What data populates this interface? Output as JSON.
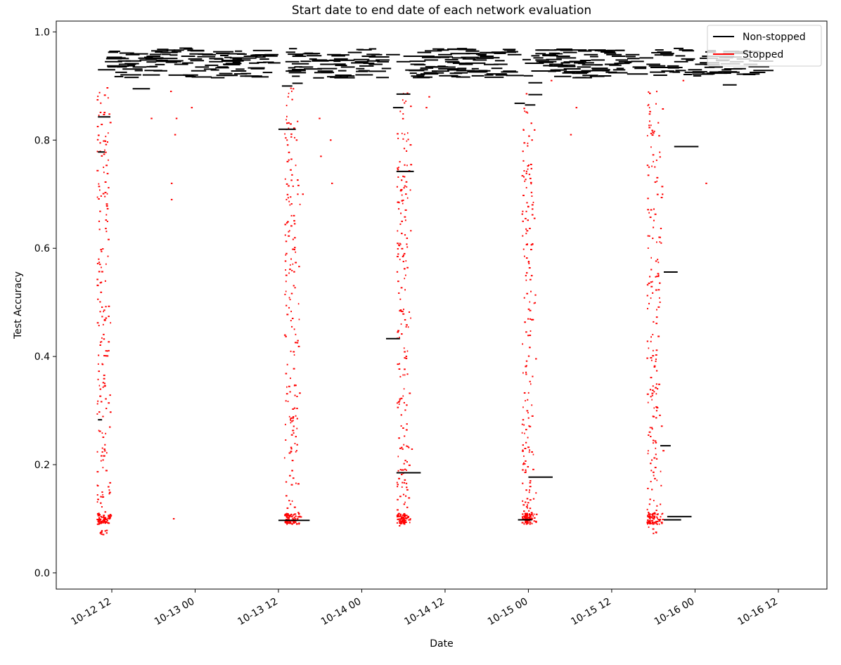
{
  "chart_data": {
    "type": "line",
    "title": "Start date to end date of each network evaluation",
    "xlabel": "Date",
    "ylabel": "Test Accuracy",
    "x_unit": "hours since 2000-10-12 00:00 (tick labels shown as MM-DD HH)",
    "xlim": [
      4.0,
      115.0
    ],
    "ylim": [
      -0.03,
      1.02
    ],
    "x_ticks": [
      {
        "value": 12,
        "label": "10-12 12"
      },
      {
        "value": 24,
        "label": "10-13 00"
      },
      {
        "value": 36,
        "label": "10-13 12"
      },
      {
        "value": 48,
        "label": "10-14 00"
      },
      {
        "value": 60,
        "label": "10-14 12"
      },
      {
        "value": 72,
        "label": "10-15 00"
      },
      {
        "value": 84,
        "label": "10-15 12"
      },
      {
        "value": 96,
        "label": "10-16 00"
      },
      {
        "value": 108,
        "label": "10-16 12"
      }
    ],
    "y_ticks": [
      {
        "value": 0.0,
        "label": "0.0"
      },
      {
        "value": 0.2,
        "label": "0.2"
      },
      {
        "value": 0.4,
        "label": "0.4"
      },
      {
        "value": 0.6,
        "label": "0.6"
      },
      {
        "value": 0.8,
        "label": "0.8"
      },
      {
        "value": 1.0,
        "label": "1.0"
      }
    ],
    "legend": {
      "position": "top-right",
      "entries": [
        {
          "label": "Non-stopped",
          "color": "#000000"
        },
        {
          "label": "Stopped",
          "color": "#ff0000"
        }
      ]
    },
    "grid": false,
    "series": [
      {
        "name": "Non-stopped",
        "color": "#000000",
        "segments": [
          [
            10.0,
            11.8,
            0.843
          ],
          [
            10.0,
            11.0,
            0.778
          ],
          [
            10.0,
            10.6,
            0.283
          ],
          [
            10.0,
            12.5,
            0.93
          ],
          [
            11.0,
            13.5,
            0.945
          ],
          [
            12.0,
            14.0,
            0.952
          ],
          [
            13.0,
            15.5,
            0.94
          ],
          [
            14.0,
            16.0,
            0.958
          ],
          [
            15.0,
            17.0,
            0.935
          ],
          [
            15.0,
            17.5,
            0.895
          ],
          [
            16.0,
            18.5,
            0.948
          ],
          [
            17.0,
            19.0,
            0.955
          ],
          [
            18.0,
            20.0,
            0.928
          ],
          [
            19.0,
            21.5,
            0.962
          ],
          [
            20.0,
            22.0,
            0.945
          ],
          [
            21.0,
            23.0,
            0.94
          ],
          [
            22.0,
            24.0,
            0.955
          ],
          [
            23.0,
            25.0,
            0.95
          ],
          [
            24.0,
            26.0,
            0.935
          ],
          [
            25.0,
            27.0,
            0.958
          ],
          [
            26.0,
            28.0,
            0.945
          ],
          [
            27.0,
            29.0,
            0.96
          ],
          [
            28.0,
            30.0,
            0.94
          ],
          [
            29.0,
            31.0,
            0.952
          ],
          [
            30.0,
            32.0,
            0.948
          ],
          [
            31.0,
            33.0,
            0.955
          ],
          [
            32.0,
            34.0,
            0.932
          ],
          [
            34.0,
            36.0,
            0.958
          ],
          [
            36.0,
            38.5,
            0.82
          ],
          [
            36.5,
            38.0,
            0.9
          ],
          [
            38.0,
            39.5,
            0.905
          ],
          [
            36.0,
            40.5,
            0.097
          ],
          [
            37.0,
            39.0,
            0.945
          ],
          [
            38.0,
            40.0,
            0.955
          ],
          [
            39.0,
            41.0,
            0.935
          ],
          [
            40.0,
            42.0,
            0.96
          ],
          [
            41.0,
            43.0,
            0.948
          ],
          [
            42.0,
            44.0,
            0.94
          ],
          [
            43.0,
            45.0,
            0.958
          ],
          [
            44.0,
            46.0,
            0.95
          ],
          [
            45.0,
            47.0,
            0.935
          ],
          [
            46.0,
            48.0,
            0.962
          ],
          [
            47.0,
            49.0,
            0.945
          ],
          [
            48.0,
            50.0,
            0.955
          ],
          [
            49.0,
            51.0,
            0.94
          ],
          [
            50.0,
            52.0,
            0.948
          ],
          [
            51.5,
            53.5,
            0.958
          ],
          [
            53.0,
            55.0,
            0.885
          ],
          [
            53.0,
            55.5,
            0.742
          ],
          [
            53.0,
            56.5,
            0.185
          ],
          [
            51.5,
            53.5,
            0.433
          ],
          [
            52.5,
            54.0,
            0.86
          ],
          [
            53.0,
            55.0,
            0.945
          ],
          [
            54.0,
            56.0,
            0.955
          ],
          [
            55.0,
            57.0,
            0.94
          ],
          [
            56.0,
            58.0,
            0.962
          ],
          [
            57.0,
            59.0,
            0.948
          ],
          [
            58.0,
            60.0,
            0.935
          ],
          [
            59.0,
            61.0,
            0.958
          ],
          [
            60.0,
            62.0,
            0.945
          ],
          [
            61.0,
            63.0,
            0.952
          ],
          [
            62.0,
            64.0,
            0.94
          ],
          [
            63.0,
            65.0,
            0.96
          ],
          [
            64.0,
            66.0,
            0.948
          ],
          [
            65.0,
            67.0,
            0.955
          ],
          [
            67.0,
            69.0,
            0.94
          ],
          [
            69.0,
            71.0,
            0.958
          ],
          [
            70.0,
            71.5,
            0.868
          ],
          [
            70.5,
            72.5,
            0.098
          ],
          [
            71.5,
            73.0,
            0.865
          ],
          [
            72.0,
            74.0,
            0.884
          ],
          [
            72.0,
            74.0,
            0.906
          ],
          [
            72.0,
            75.5,
            0.177
          ],
          [
            73.0,
            75.0,
            0.948
          ],
          [
            74.0,
            76.0,
            0.958
          ],
          [
            75.0,
            77.0,
            0.94
          ],
          [
            76.0,
            78.0,
            0.955
          ],
          [
            77.0,
            79.0,
            0.962
          ],
          [
            78.0,
            80.0,
            0.945
          ],
          [
            79.0,
            81.0,
            0.935
          ],
          [
            80.0,
            82.0,
            0.958
          ],
          [
            81.0,
            83.0,
            0.948
          ],
          [
            82.0,
            84.0,
            0.965
          ],
          [
            83.0,
            85.0,
            0.94
          ],
          [
            84.0,
            86.0,
            0.955
          ],
          [
            85.0,
            87.0,
            0.945
          ],
          [
            86.0,
            88.0,
            0.958
          ],
          [
            87.0,
            89.0,
            0.935
          ],
          [
            88.0,
            90.0,
            0.952
          ],
          [
            89.0,
            91.0,
            0.94
          ],
          [
            90.0,
            92.0,
            0.92
          ],
          [
            91.0,
            93.0,
            0.96
          ],
          [
            91.5,
            93.5,
            0.556
          ],
          [
            91.0,
            92.5,
            0.235
          ],
          [
            91.5,
            94.0,
            0.098
          ],
          [
            92.0,
            95.5,
            0.104
          ],
          [
            93.0,
            96.5,
            0.788
          ],
          [
            93.0,
            95.0,
            0.945
          ],
          [
            94.0,
            96.0,
            0.95
          ],
          [
            95.0,
            97.0,
            0.93
          ],
          [
            96.0,
            98.0,
            0.94
          ],
          [
            97.0,
            99.0,
            0.955
          ],
          [
            98.0,
            100.0,
            0.935
          ],
          [
            99.0,
            101.0,
            0.948
          ],
          [
            100.0,
            102.0,
            0.902
          ],
          [
            101.0,
            103.0,
            0.945
          ],
          [
            102.0,
            104.0,
            0.95
          ],
          [
            103.0,
            105.0,
            0.94
          ]
        ]
      },
      {
        "name": "Stopped",
        "color": "#ff0000",
        "clusters": [
          {
            "x_min": 9.8,
            "x_max": 12.0,
            "y_min": 0.07,
            "y_max": 0.9,
            "base_y": 0.1,
            "count": 260
          },
          {
            "x_min": 36.8,
            "x_max": 39.2,
            "y_min": 0.09,
            "y_max": 0.9,
            "base_y": 0.1,
            "count": 250
          },
          {
            "x_min": 53.0,
            "x_max": 55.3,
            "y_min": 0.085,
            "y_max": 0.89,
            "base_y": 0.1,
            "count": 260
          },
          {
            "x_min": 71.0,
            "x_max": 73.2,
            "y_min": 0.09,
            "y_max": 0.89,
            "base_y": 0.1,
            "count": 250
          },
          {
            "x_min": 89.0,
            "x_max": 91.4,
            "y_min": 0.06,
            "y_max": 0.89,
            "base_y": 0.1,
            "count": 250
          }
        ],
        "outliers": [
          [
            17.6,
            0.84
          ],
          [
            20.4,
            0.89
          ],
          [
            20.5,
            0.72
          ],
          [
            20.5,
            0.69
          ],
          [
            20.8,
            0.1
          ],
          [
            21.2,
            0.84
          ],
          [
            21.0,
            0.81
          ],
          [
            23.4,
            0.86
          ],
          [
            38.5,
            0.8
          ],
          [
            39.4,
            0.7
          ],
          [
            41.8,
            0.84
          ],
          [
            42.0,
            0.77
          ],
          [
            43.6,
            0.72
          ],
          [
            43.4,
            0.8
          ],
          [
            57.6,
            0.88
          ],
          [
            57.2,
            0.86
          ],
          [
            75.2,
            0.91
          ],
          [
            78.0,
            0.81
          ],
          [
            78.8,
            0.86
          ],
          [
            97.5,
            0.72
          ],
          [
            94.2,
            0.91
          ]
        ]
      }
    ]
  }
}
